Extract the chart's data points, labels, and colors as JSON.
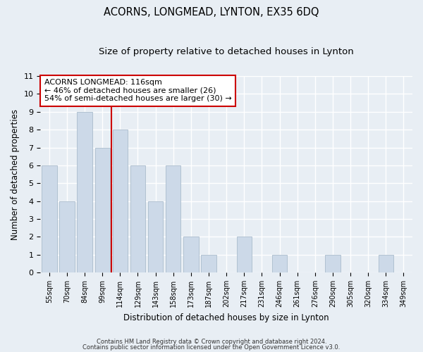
{
  "title": "ACORNS, LONGMEAD, LYNTON, EX35 6DQ",
  "subtitle": "Size of property relative to detached houses in Lynton",
  "xlabel": "Distribution of detached houses by size in Lynton",
  "ylabel": "Number of detached properties",
  "categories": [
    "55sqm",
    "70sqm",
    "84sqm",
    "99sqm",
    "114sqm",
    "129sqm",
    "143sqm",
    "158sqm",
    "173sqm",
    "187sqm",
    "202sqm",
    "217sqm",
    "231sqm",
    "246sqm",
    "261sqm",
    "276sqm",
    "290sqm",
    "305sqm",
    "320sqm",
    "334sqm",
    "349sqm"
  ],
  "values": [
    6,
    4,
    9,
    7,
    8,
    6,
    4,
    6,
    2,
    1,
    0,
    2,
    0,
    1,
    0,
    0,
    1,
    0,
    0,
    1,
    0
  ],
  "bar_color": "#ccd9e8",
  "bar_edge_color": "#aabccc",
  "property_line_index": 4,
  "annotation_title": "ACORNS LONGMEAD: 116sqm",
  "annotation_line1": "← 46% of detached houses are smaller (26)",
  "annotation_line2": "54% of semi-detached houses are larger (30) →",
  "annotation_box_facecolor": "#ffffff",
  "annotation_box_edgecolor": "#cc0000",
  "property_line_color": "#cc0000",
  "ylim": [
    0,
    11
  ],
  "yticks": [
    0,
    1,
    2,
    3,
    4,
    5,
    6,
    7,
    8,
    9,
    10,
    11
  ],
  "footer1": "Contains HM Land Registry data © Crown copyright and database right 2024.",
  "footer2": "Contains public sector information licensed under the Open Government Licence v3.0.",
  "background_color": "#e8eef4",
  "grid_color": "#ffffff",
  "title_fontsize": 10.5,
  "subtitle_fontsize": 9.5,
  "xlabel_fontsize": 8.5,
  "ylabel_fontsize": 8.5,
  "tick_fontsize": 7,
  "annotation_fontsize": 8,
  "footer_fontsize": 6
}
